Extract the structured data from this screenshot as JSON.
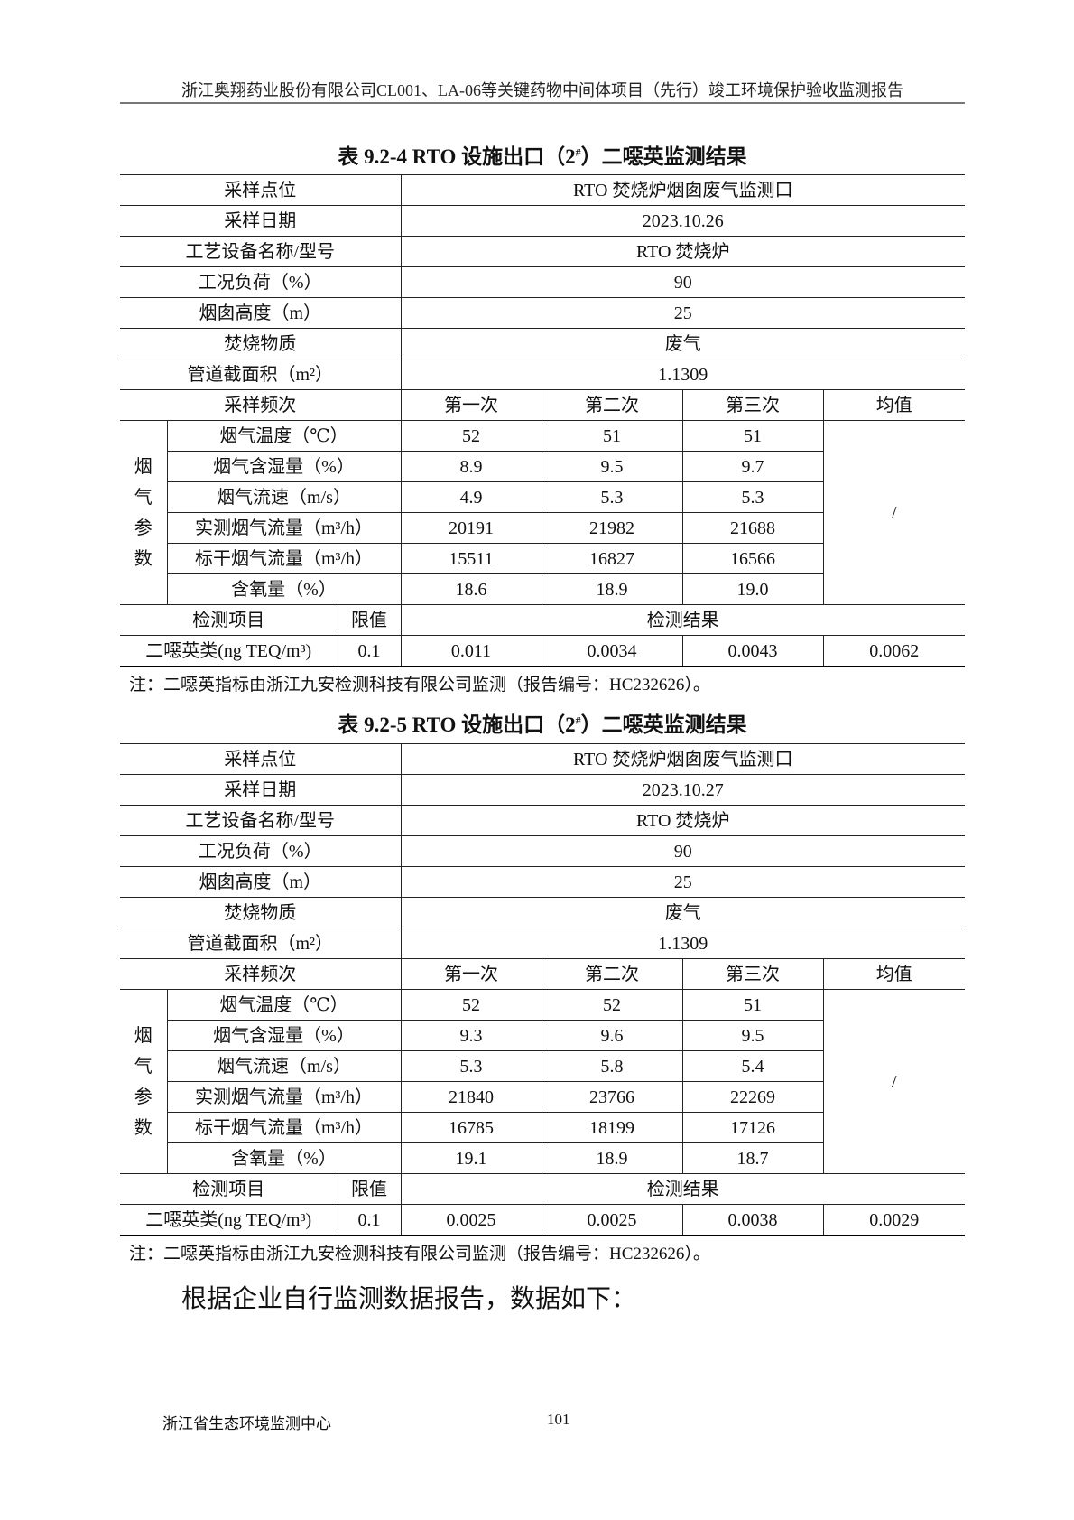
{
  "header": "浙江奥翔药业股份有限公司CL001、LA-06等关键药物中间体项目（先行）竣工环境保护验收监测报告",
  "tables": [
    {
      "title_pre": "表 9.2-4 RTO 设施出口（2",
      "title_sup": "#",
      "title_post": "）二噁英监测结果",
      "info": [
        {
          "label": "采样点位",
          "value": "RTO 焚烧炉烟囱废气监测口"
        },
        {
          "label": "采样日期",
          "value": "2023.10.26"
        },
        {
          "label": "工艺设备名称/型号",
          "value": "RTO 焚烧炉"
        },
        {
          "label": "工况负荷（%）",
          "value": "90"
        },
        {
          "label": "烟囱高度（m）",
          "value": "25"
        },
        {
          "label": "焚烧物质",
          "value": "废气"
        },
        {
          "label": "管道截面积（m²）",
          "value": "1.1309"
        }
      ],
      "freq_label": "采样频次",
      "freq": [
        "第一次",
        "第二次",
        "第三次",
        "均值"
      ],
      "group_label": "烟气参数",
      "params": [
        {
          "label": "烟气温度（℃）",
          "values": [
            "52",
            "51",
            "51"
          ]
        },
        {
          "label": "烟气含湿量（%）",
          "values": [
            "8.9",
            "9.5",
            "9.7"
          ]
        },
        {
          "label": "烟气流速（m/s）",
          "values": [
            "4.9",
            "5.3",
            "5.3"
          ]
        },
        {
          "label": "实测烟气流量（m³/h）",
          "values": [
            "20191",
            "21982",
            "21688"
          ]
        },
        {
          "label": "标干烟气流量（m³/h）",
          "values": [
            "15511",
            "16827",
            "16566"
          ]
        },
        {
          "label": "含氧量（%）",
          "values": [
            "18.6",
            "18.9",
            "19.0"
          ]
        }
      ],
      "params_mean": "/",
      "item_label": "检测项目",
      "limit_label": "限值",
      "result_label": "检测结果",
      "result": {
        "item": "二噁英类(ng TEQ/m³)",
        "limit": "0.1",
        "values": [
          "0.011",
          "0.0034",
          "0.0043",
          "0.0062"
        ]
      },
      "note": "注：二噁英指标由浙江九安检测科技有限公司监测（报告编号：HC232626）。"
    },
    {
      "title_pre": "表 9.2-5 RTO 设施出口（2",
      "title_sup": "#",
      "title_post": "）二噁英监测结果",
      "info": [
        {
          "label": "采样点位",
          "value": "RTO 焚烧炉烟囱废气监测口"
        },
        {
          "label": "采样日期",
          "value": "2023.10.27"
        },
        {
          "label": "工艺设备名称/型号",
          "value": "RTO 焚烧炉"
        },
        {
          "label": "工况负荷（%）",
          "value": "90"
        },
        {
          "label": "烟囱高度（m）",
          "value": "25"
        },
        {
          "label": "焚烧物质",
          "value": "废气"
        },
        {
          "label": "管道截面积（m²）",
          "value": "1.1309"
        }
      ],
      "freq_label": "采样频次",
      "freq": [
        "第一次",
        "第二次",
        "第三次",
        "均值"
      ],
      "group_label": "烟气参数",
      "params": [
        {
          "label": "烟气温度（℃）",
          "values": [
            "52",
            "52",
            "51"
          ]
        },
        {
          "label": "烟气含湿量（%）",
          "values": [
            "9.3",
            "9.6",
            "9.5"
          ]
        },
        {
          "label": "烟气流速（m/s）",
          "values": [
            "5.3",
            "5.8",
            "5.4"
          ]
        },
        {
          "label": "实测烟气流量（m³/h）",
          "values": [
            "21840",
            "23766",
            "22269"
          ]
        },
        {
          "label": "标干烟气流量（m³/h）",
          "values": [
            "16785",
            "18199",
            "17126"
          ]
        },
        {
          "label": "含氧量（%）",
          "values": [
            "19.1",
            "18.9",
            "18.7"
          ]
        }
      ],
      "params_mean": "/",
      "item_label": "检测项目",
      "limit_label": "限值",
      "result_label": "检测结果",
      "result": {
        "item": "二噁英类(ng TEQ/m³)",
        "limit": "0.1",
        "values": [
          "0.0025",
          "0.0025",
          "0.0038",
          "0.0029"
        ]
      },
      "note": "注：二噁英指标由浙江九安检测科技有限公司监测（报告编号：HC232626）。"
    }
  ],
  "paragraph": "根据企业自行监测数据报告，数据如下：",
  "footer": {
    "org": "浙江省生态环境监测中心",
    "page": "101"
  }
}
